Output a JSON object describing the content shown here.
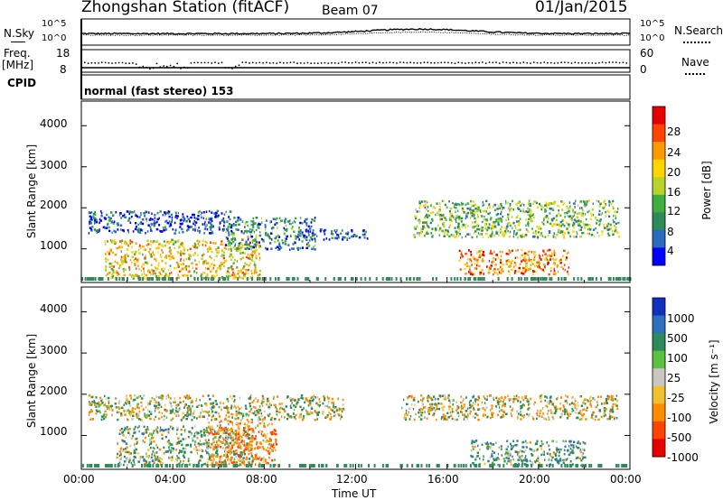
{
  "header": {
    "station": "Zhongshan Station (fitACF)",
    "beam": "Beam 07",
    "date": "01/Jan/2015"
  },
  "noise_panel": {
    "left_label": "N.Sky",
    "right_label": "N.Search",
    "left_ticks": [
      "10^5",
      "10^0"
    ],
    "right_ticks": [
      "10^5",
      "10^0"
    ]
  },
  "freq_panel": {
    "left_label_1": "Freq.",
    "left_label_2": "[MHz]",
    "left_ticks": [
      "18",
      "8"
    ],
    "right_label": "Nave",
    "right_ticks": [
      "60",
      "0"
    ]
  },
  "cpid_panel": {
    "label": "CPID",
    "mode_text": "normal (fast stereo) 153"
  },
  "power_panel": {
    "ylabel": "Slant Range [km]",
    "yticks": [
      "4000",
      "3000",
      "2000",
      "1000"
    ],
    "colorbar_label": "Power [dB]",
    "colorbar_ticks": [
      "28",
      "24",
      "20",
      "16",
      "12",
      "8",
      "4"
    ],
    "colors": [
      "#0000ff",
      "#2a6bc0",
      "#2e8b57",
      "#3fae3f",
      "#b8d42a",
      "#ffd400",
      "#ff9900",
      "#ff4400",
      "#e60000"
    ]
  },
  "velocity_panel": {
    "ylabel": "Slant Range [km]",
    "yticks": [
      "4000",
      "3000",
      "2000",
      "1000"
    ],
    "colorbar_label": "Velocity [m s⁻¹]",
    "colorbar_ticks": [
      "1000",
      "500",
      "100",
      "25",
      "-25",
      "-100",
      "-500",
      "-1000"
    ],
    "colors": [
      "#1030c0",
      "#2f6fbf",
      "#2f8a5a",
      "#5cc040",
      "#c8c8c0",
      "#f0c030",
      "#ff8c00",
      "#ff4400",
      "#e60000"
    ]
  },
  "xaxis": {
    "label": "Time UT",
    "ticks": [
      "00:00",
      "04:00",
      "08:00",
      "12:00",
      "16:00",
      "20:00",
      "00:00"
    ]
  },
  "chart_data": [
    {
      "type": "heatmap",
      "title": "Zhongshan Station (fitACF) Beam 07 01/Jan/2015",
      "xlabel": "Time UT",
      "ylabel": "Slant Range [km]",
      "xlim": [
        0,
        24
      ],
      "ylim": [
        180,
        4600
      ],
      "colorbar": {
        "label": "Power [dB]",
        "ticks": [
          4,
          8,
          12,
          16,
          20,
          24,
          28
        ]
      },
      "scatter_regions": [
        {
          "t0": 0.3,
          "t1": 6.5,
          "r0": 1400,
          "r1": 1950,
          "power": 6
        },
        {
          "t0": 1.0,
          "t1": 7.8,
          "r0": 300,
          "r1": 1250,
          "power": 20
        },
        {
          "t0": 6.2,
          "t1": 10.2,
          "r0": 1000,
          "r1": 1800,
          "power": 10
        },
        {
          "t0": 9.5,
          "t1": 12.5,
          "r0": 1250,
          "r1": 1500,
          "power": 6
        },
        {
          "t0": 14.5,
          "t1": 23.5,
          "r0": 1300,
          "r1": 2200,
          "power": 14
        },
        {
          "t0": 16.5,
          "t1": 21.3,
          "r0": 400,
          "r1": 1000,
          "power": 24
        }
      ]
    },
    {
      "type": "heatmap",
      "title": "Zhongshan Station (fitACF) Beam 07 01/Jan/2015",
      "xlabel": "Time UT",
      "ylabel": "Slant Range [km]",
      "xlim": [
        0,
        24
      ],
      "ylim": [
        180,
        4600
      ],
      "colorbar": {
        "label": "Velocity [m s⁻¹]",
        "ticks": [
          1000,
          500,
          100,
          25,
          -25,
          -100,
          -500,
          -1000
        ]
      },
      "scatter_regions": [
        {
          "t0": 0.3,
          "t1": 11.5,
          "r0": 1400,
          "r1": 2000,
          "velocity": 0
        },
        {
          "t0": 1.5,
          "t1": 7.5,
          "r0": 300,
          "r1": 1250,
          "velocity": 100
        },
        {
          "t0": 5.5,
          "t1": 8.5,
          "r0": 300,
          "r1": 1400,
          "velocity": -200
        },
        {
          "t0": 14.0,
          "t1": 23.5,
          "r0": 1400,
          "r1": 2000,
          "velocity": 0
        },
        {
          "t0": 17.0,
          "t1": 22.0,
          "r0": 300,
          "r1": 900,
          "velocity": 150
        }
      ]
    }
  ]
}
